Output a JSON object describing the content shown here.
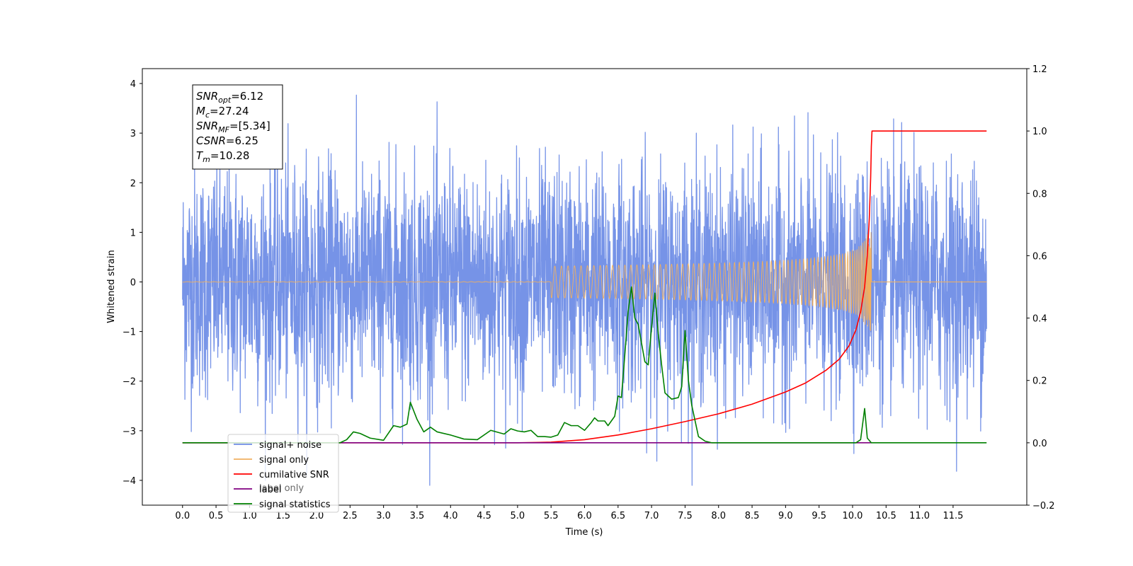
{
  "chart_data": {
    "type": "line",
    "xlabel": "Time (s)",
    "ylabel_left": "Whitened strain",
    "xlim": [
      -0.6,
      12.6
    ],
    "ylim_left": [
      -4.5,
      4.3
    ],
    "ylim_right": [
      -0.2,
      1.2
    ],
    "xticks": [
      "0.0",
      "0.5",
      "1.0",
      "1.5",
      "2.0",
      "2.5",
      "3.0",
      "3.5",
      "4.0",
      "4.5",
      "5.0",
      "5.5",
      "6.0",
      "6.5",
      "7.0",
      "7.5",
      "8.0",
      "8.5",
      "9.0",
      "9.5",
      "10.0",
      "10.5",
      "11.0",
      "11.5"
    ],
    "yticks_left": [
      "4",
      "3",
      "2",
      "1",
      "0",
      "−1",
      "−2",
      "−3",
      "−4"
    ],
    "yticks_right": [
      "1.2",
      "1.0",
      "0.8",
      "0.6",
      "0.4",
      "0.2",
      "0.0",
      "−0.2"
    ],
    "grid": false,
    "legend_position": "lower-left",
    "stats_box": [
      {
        "sym": "SNR",
        "sub": "opt",
        "value": "=6.12"
      },
      {
        "sym": "M",
        "sub": "c",
        "value": "=27.24"
      },
      {
        "sym": "SNR",
        "sub": "MF",
        "value": "=[5.34]"
      },
      {
        "sym": "CSNR",
        "sub": "",
        "value": "=6.25"
      },
      {
        "sym": "T",
        "sub": "m",
        "value": "=10.28"
      }
    ],
    "series": [
      {
        "name": "signal+ noise",
        "axis": "left",
        "color": "#6f8de6",
        "kind": "noise",
        "x_range": [
          0.0,
          12.0
        ],
        "approx_range": [
          -4.1,
          3.9
        ]
      },
      {
        "name": "signal only",
        "axis": "left",
        "color": "#f0b060",
        "kind": "chirp",
        "x_range": [
          0.0,
          12.0
        ],
        "merger_time": 10.28,
        "peak_amplitude": 1.0
      },
      {
        "name": "cumilative SNR",
        "axis": "right",
        "color": "#ff0000",
        "x": [
          0.0,
          5.0,
          5.5,
          6.0,
          6.5,
          7.0,
          7.5,
          8.0,
          8.5,
          9.0,
          9.3,
          9.6,
          9.8,
          9.95,
          10.05,
          10.12,
          10.18,
          10.22,
          10.25,
          10.27,
          10.28,
          10.29,
          12.0
        ],
        "y": [
          0.0,
          0.0,
          0.002,
          0.01,
          0.025,
          0.045,
          0.068,
          0.093,
          0.124,
          0.163,
          0.192,
          0.232,
          0.268,
          0.312,
          0.362,
          0.42,
          0.5,
          0.6,
          0.72,
          0.85,
          0.95,
          1.0,
          1.0
        ]
      },
      {
        "name": "label",
        "axis": "right",
        "color": "#800080",
        "x": [
          0.0,
          10.28
        ],
        "y": [
          0.0,
          0.0
        ]
      },
      {
        "name": "label only",
        "axis": "right",
        "color": "#800080",
        "x": [],
        "y": []
      },
      {
        "name": "signal statistics",
        "axis": "right",
        "color": "#008000",
        "x": [
          0.0,
          2.0,
          2.35,
          2.45,
          2.55,
          2.65,
          2.8,
          3.0,
          3.15,
          3.25,
          3.35,
          3.4,
          3.5,
          3.6,
          3.7,
          3.8,
          4.0,
          4.2,
          4.4,
          4.6,
          4.8,
          4.9,
          5.0,
          5.1,
          5.2,
          5.3,
          5.4,
          5.5,
          5.6,
          5.7,
          5.8,
          5.9,
          6.0,
          6.1,
          6.15,
          6.2,
          6.3,
          6.35,
          6.45,
          6.5,
          6.55,
          6.6,
          6.65,
          6.7,
          6.75,
          6.8,
          6.9,
          6.95,
          7.0,
          7.05,
          7.1,
          7.15,
          7.2,
          7.25,
          7.3,
          7.4,
          7.45,
          7.5,
          7.55,
          7.6,
          7.7,
          7.8,
          7.9,
          8.0,
          8.3,
          10.05,
          10.12,
          10.18,
          10.22,
          10.28,
          12.0
        ],
        "y": [
          0.0,
          0.0,
          0.0,
          0.01,
          0.035,
          0.03,
          0.015,
          0.008,
          0.055,
          0.05,
          0.06,
          0.13,
          0.075,
          0.035,
          0.05,
          0.035,
          0.025,
          0.012,
          0.01,
          0.04,
          0.028,
          0.045,
          0.038,
          0.035,
          0.04,
          0.02,
          0.02,
          0.018,
          0.025,
          0.065,
          0.055,
          0.055,
          0.04,
          0.065,
          0.08,
          0.07,
          0.07,
          0.055,
          0.085,
          0.15,
          0.145,
          0.28,
          0.42,
          0.5,
          0.4,
          0.38,
          0.26,
          0.25,
          0.37,
          0.48,
          0.35,
          0.25,
          0.16,
          0.15,
          0.14,
          0.145,
          0.18,
          0.36,
          0.2,
          0.12,
          0.02,
          0.005,
          0.0,
          0.0,
          0.0,
          0.0,
          0.01,
          0.11,
          0.015,
          0.0,
          0.0
        ]
      }
    ]
  }
}
